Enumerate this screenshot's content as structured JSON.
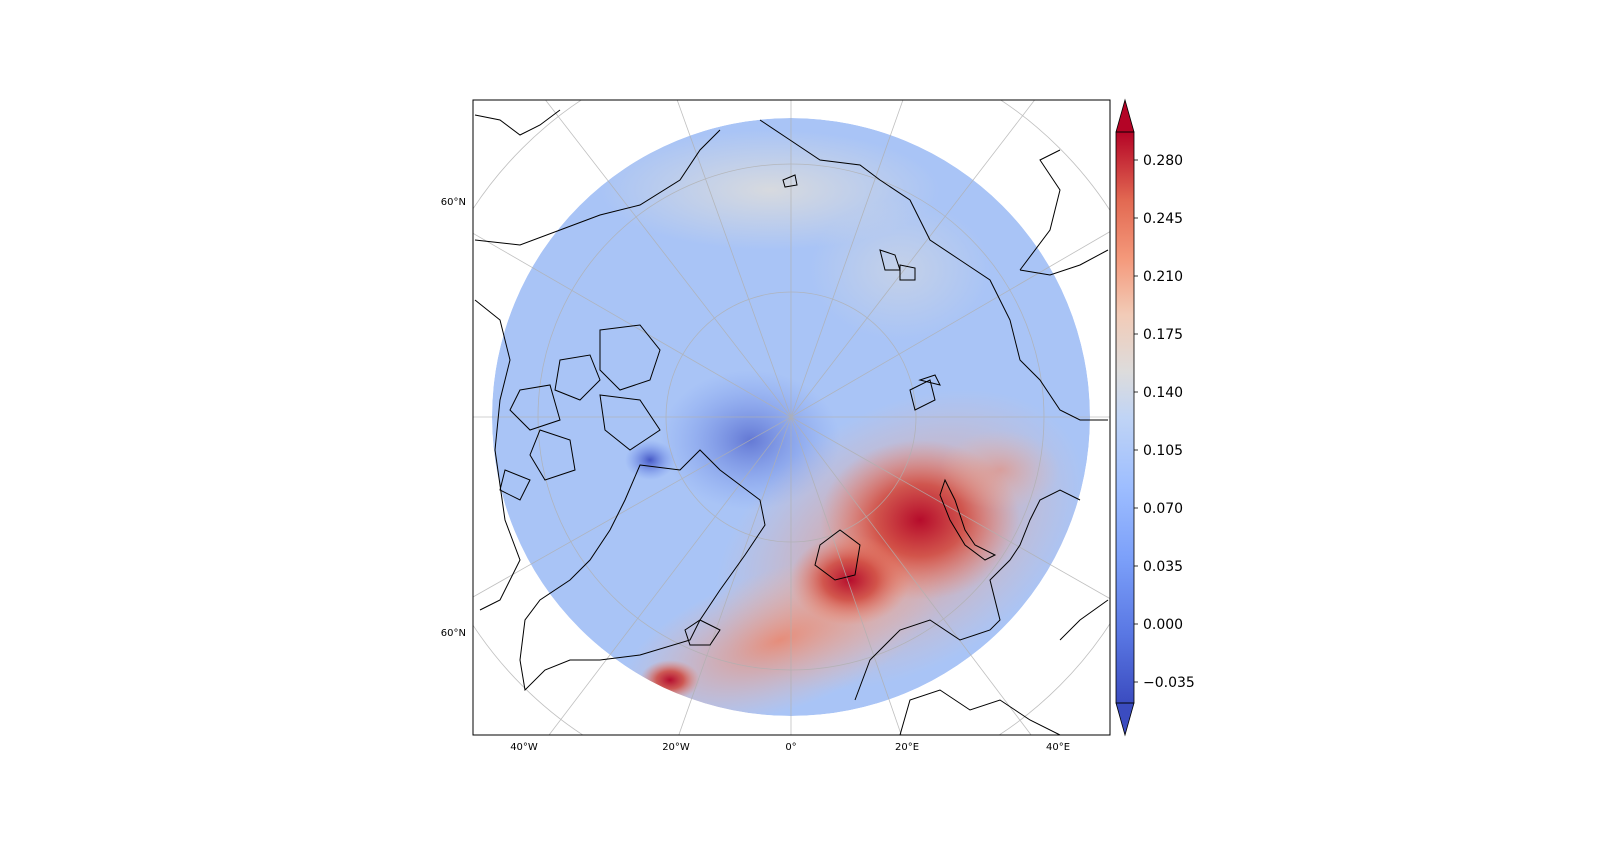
{
  "map": {
    "projection": "north-polar-stereographic",
    "colormap": "coolwarm",
    "coastline_color": "#000000",
    "gridline_color": "#b0b0b0",
    "lon_tick_labels": [
      "40°W",
      "20°W",
      "0°",
      "20°E",
      "40°E"
    ],
    "lat_tick_labels": [
      "60°N",
      "60°N"
    ]
  },
  "colorbar": {
    "tick_labels": [
      "0.280",
      "0.245",
      "0.210",
      "0.175",
      "0.140",
      "0.105",
      "0.070",
      "0.035",
      "0.000",
      "−0.035"
    ],
    "tick_values": [
      0.28,
      0.245,
      0.21,
      0.175,
      0.14,
      0.105,
      0.07,
      0.035,
      0.0,
      -0.035
    ],
    "range": [
      -0.05,
      0.3
    ],
    "extend": "both",
    "colors": [
      "#3b4cc0",
      "#6788ee",
      "#9abbff",
      "#c9d7f0",
      "#dddddd",
      "#f7b89c",
      "#ee8468",
      "#d0473d",
      "#b40426"
    ]
  }
}
